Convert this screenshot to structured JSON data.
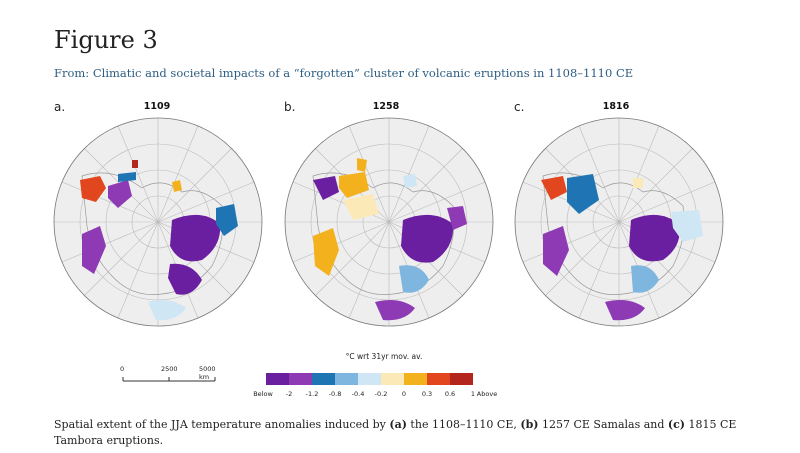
{
  "figure_title": "Figure 3",
  "source": {
    "prefix": "From:",
    "article_title": "Climatic and societal impacts of a “forgotten” cluster of volcanic eruptions in 1108–1110 CE"
  },
  "panels": [
    {
      "label": "a.",
      "year": "1109"
    },
    {
      "label": "b.",
      "year": "1258"
    },
    {
      "label": "c.",
      "year": "1816"
    }
  ],
  "scale_bar": {
    "labels": [
      "0",
      "2500",
      "5000 km"
    ]
  },
  "legend": {
    "title": "°C wrt 31yr mov. av.",
    "colors": [
      "#6a1fa0",
      "#8e3ab5",
      "#1f74b4",
      "#7fb6df",
      "#cfe6f4",
      "#fbe9b8",
      "#f3b21d",
      "#e2461e",
      "#b3261e"
    ],
    "tick_labels": [
      "Below",
      "-2",
      "-1.2",
      "-0.8",
      "-0.4",
      "-0.2",
      "0",
      "0.3",
      "0.6",
      "1",
      "Above"
    ]
  },
  "caption": {
    "part1": "Spatial extent of the JJA temperature anomalies induced by ",
    "a": "(a)",
    "part2": " the 1108–1110 CE, ",
    "b": "(b)",
    "part3": " 1257 CE Samalas and ",
    "c": "(c)",
    "part4": " 1815 CE Tambora eruptions."
  }
}
